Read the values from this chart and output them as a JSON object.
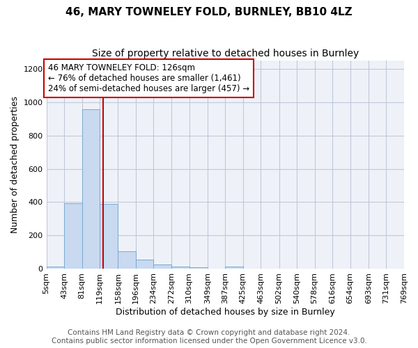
{
  "title1": "46, MARY TOWNELEY FOLD, BURNLEY, BB10 4LZ",
  "title2": "Size of property relative to detached houses in Burnley",
  "xlabel": "Distribution of detached houses by size in Burnley",
  "ylabel": "Number of detached properties",
  "bin_edges": [
    5,
    43,
    81,
    119,
    158,
    196,
    234,
    272,
    310,
    349,
    387,
    425,
    463,
    502,
    540,
    578,
    616,
    654,
    693,
    731,
    769
  ],
  "bar_heights": [
    15,
    395,
    955,
    390,
    105,
    55,
    25,
    15,
    10,
    0,
    15,
    0,
    0,
    0,
    0,
    0,
    0,
    0,
    0,
    0
  ],
  "bar_color": "#c8d9f0",
  "bar_edge_color": "#7aaad0",
  "grid_color": "#c0c8d8",
  "background_color": "#eef2f8",
  "red_line_x": 126,
  "red_line_color": "#cc0000",
  "annotation_line1": "46 MARY TOWNELEY FOLD: 126sqm",
  "annotation_line2": "← 76% of detached houses are smaller (1,461)",
  "annotation_line3": "24% of semi-detached houses are larger (457) →",
  "annotation_box_color": "#ffffff",
  "annotation_box_edge": "#cc0000",
  "ylim": [
    0,
    1250
  ],
  "yticks": [
    0,
    200,
    400,
    600,
    800,
    1000,
    1200
  ],
  "footer": "Contains HM Land Registry data © Crown copyright and database right 2024.\nContains public sector information licensed under the Open Government Licence v3.0.",
  "title1_fontsize": 11,
  "title2_fontsize": 10,
  "xlabel_fontsize": 9,
  "ylabel_fontsize": 9,
  "tick_fontsize": 8,
  "annotation_fontsize": 8.5,
  "footer_fontsize": 7.5
}
